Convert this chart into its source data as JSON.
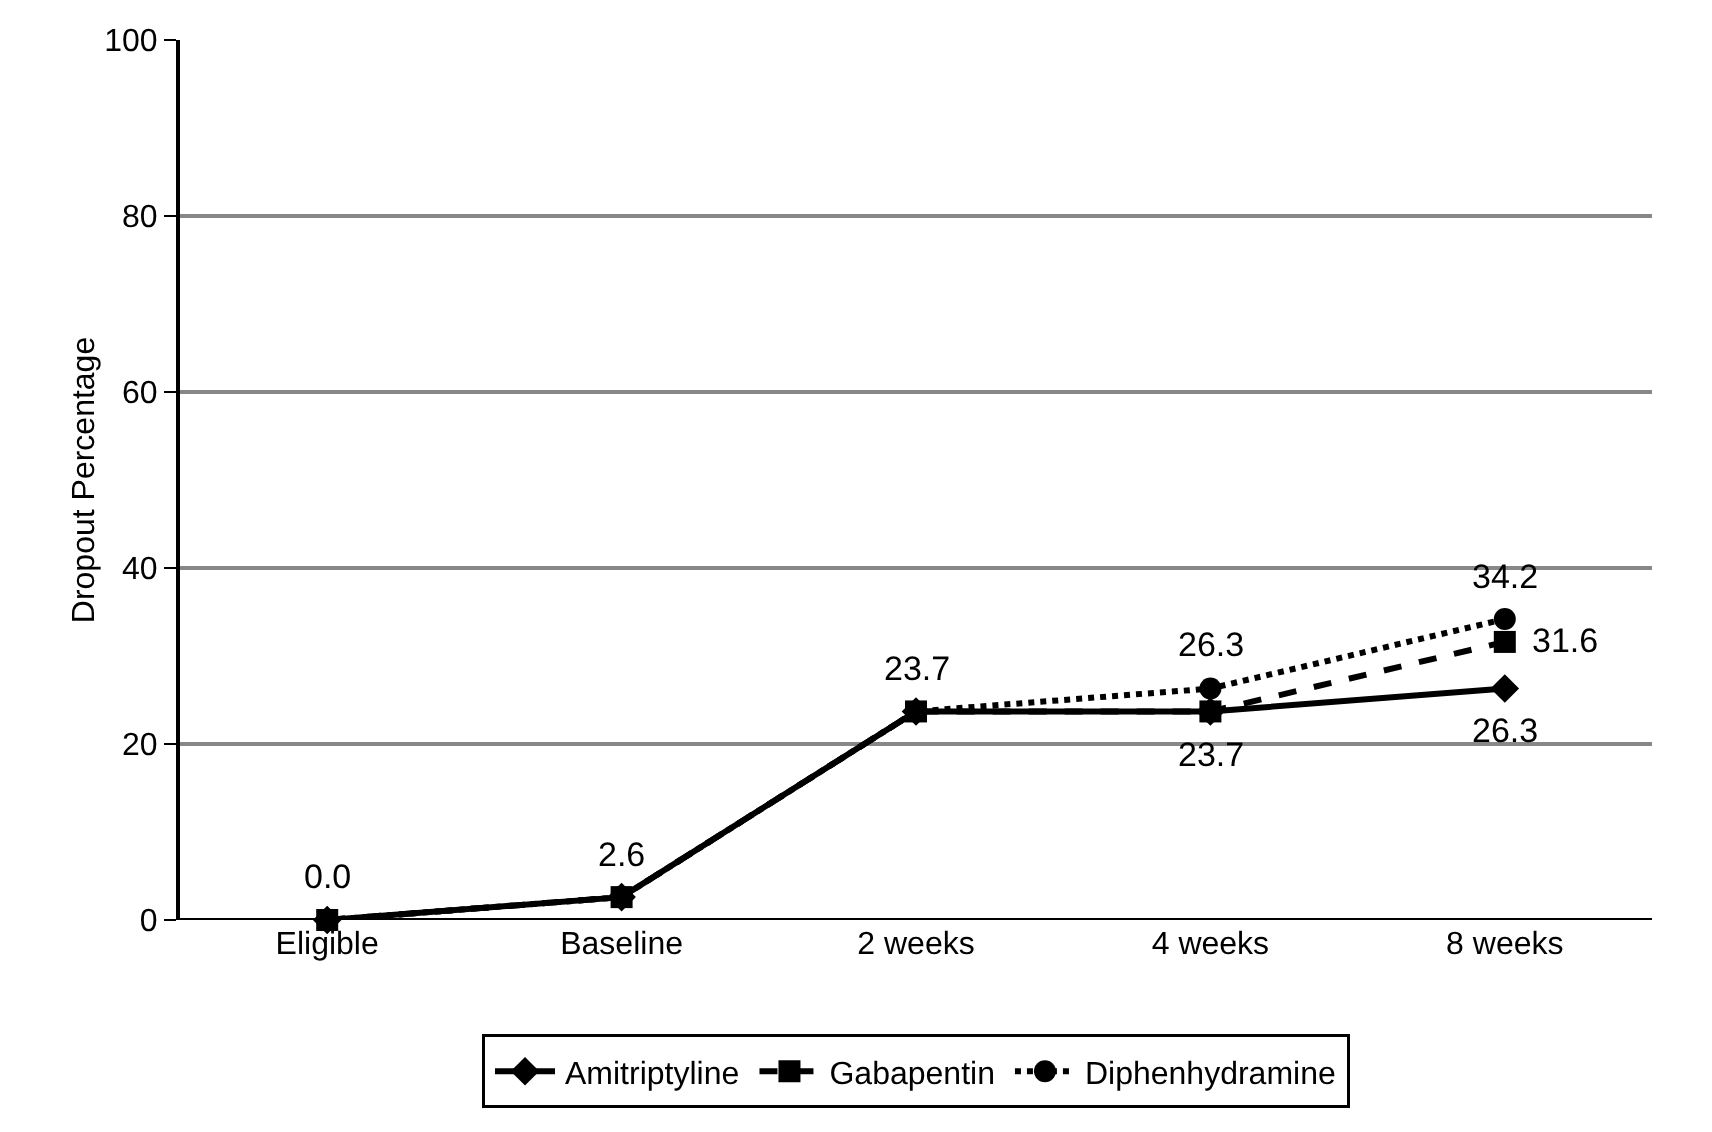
{
  "chart_data": {
    "type": "line",
    "ylabel": "Dropout Percentage",
    "categories": [
      "Eligible",
      "Baseline",
      "2 weeks",
      "4 weeks",
      "8 weeks"
    ],
    "ylim": [
      0,
      100
    ],
    "yticks": [
      0,
      20,
      40,
      60,
      80,
      100
    ],
    "grid": "y",
    "legend": "bottom",
    "series": [
      {
        "name": "Amitriptyline",
        "color": "#000000",
        "marker": "diamond",
        "line_style": "solid",
        "values": [
          0,
          2.6,
          23.7,
          23.7,
          26.3
        ],
        "value_labels": [
          "0.0",
          "2.6",
          "23.7",
          "23.7",
          "26.3"
        ]
      },
      {
        "name": "Gabapentin",
        "color": "#000000",
        "marker": "square",
        "line_style": "dashed",
        "values": [
          0,
          2.6,
          23.7,
          23.7,
          31.6
        ],
        "value_labels": [
          null,
          null,
          null,
          null,
          "31.6"
        ]
      },
      {
        "name": "Diphenhydramine",
        "color": "#000000",
        "marker": "circle",
        "line_style": "dotted",
        "values": [
          0,
          2.6,
          23.7,
          26.3,
          34.2
        ],
        "value_labels": [
          null,
          null,
          null,
          "26.3",
          "34.2"
        ]
      }
    ]
  }
}
